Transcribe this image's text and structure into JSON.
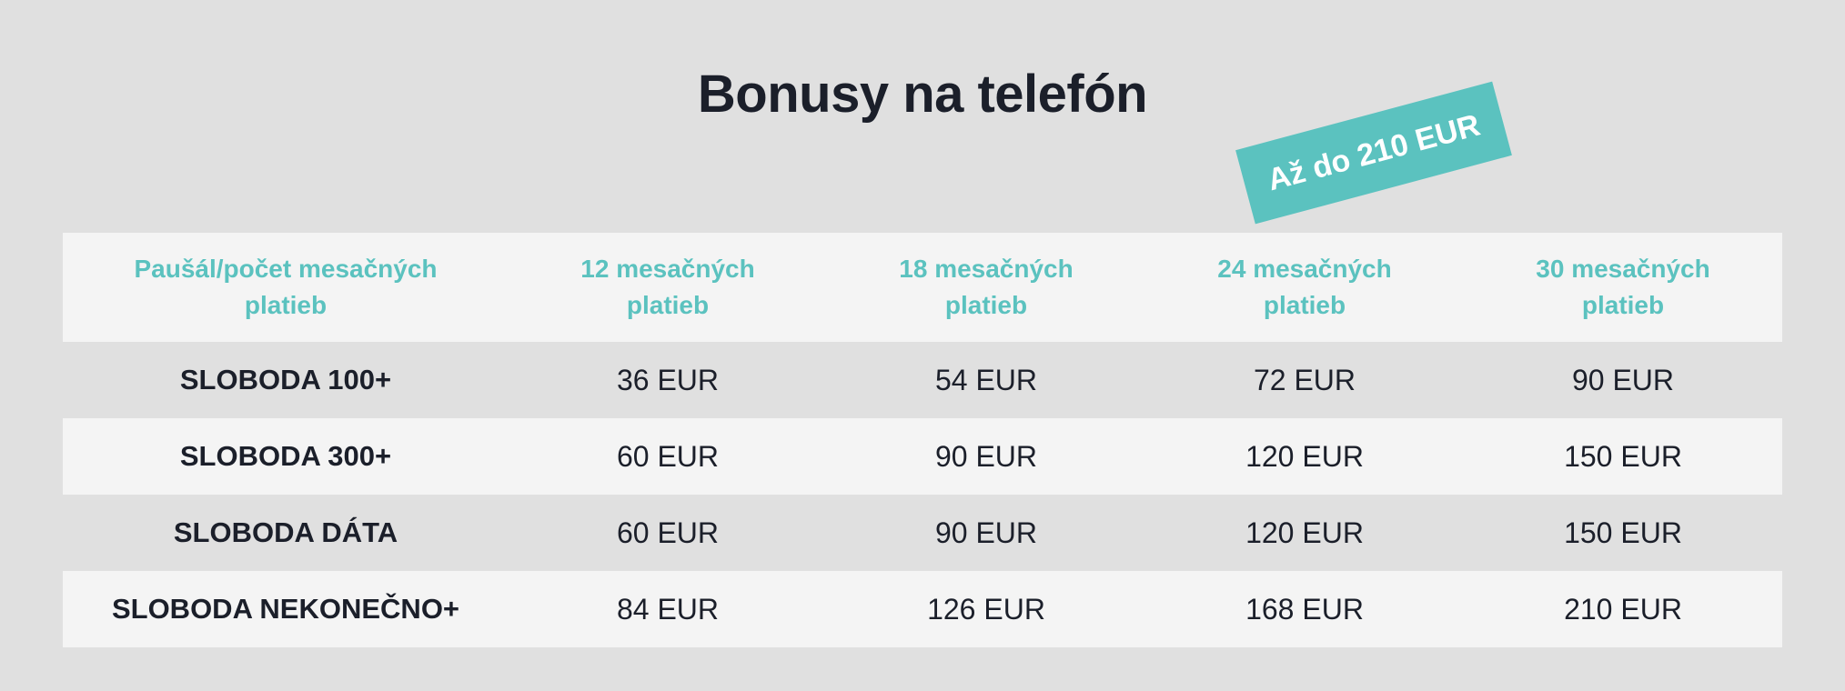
{
  "title": "Bonusy na telefón",
  "badge": "Až do 210 EUR",
  "colors": {
    "accent": "#5bc2bf",
    "background": "#e0e0e0",
    "row_light": "#f4f4f4",
    "text_dark": "#1b1f2a"
  },
  "table": {
    "headers": [
      "Paušál/počet mesačných platieb",
      "12 mesačných platieb",
      "18 mesačných platieb",
      "24 mesačných platieb",
      "30 mesačných platieb"
    ],
    "rows": [
      {
        "plan": "SLOBODA 100+",
        "values": [
          "36 EUR",
          "54 EUR",
          "72 EUR",
          "90 EUR"
        ]
      },
      {
        "plan": "SLOBODA 300+",
        "values": [
          "60 EUR",
          "90 EUR",
          "120 EUR",
          "150 EUR"
        ]
      },
      {
        "plan": "SLOBODA DÁTA",
        "values": [
          "60 EUR",
          "90 EUR",
          "120 EUR",
          "150 EUR"
        ]
      },
      {
        "plan": "SLOBODA NEKONEČNO+",
        "values": [
          "84 EUR",
          "126 EUR",
          "168 EUR",
          "210 EUR"
        ]
      }
    ]
  }
}
